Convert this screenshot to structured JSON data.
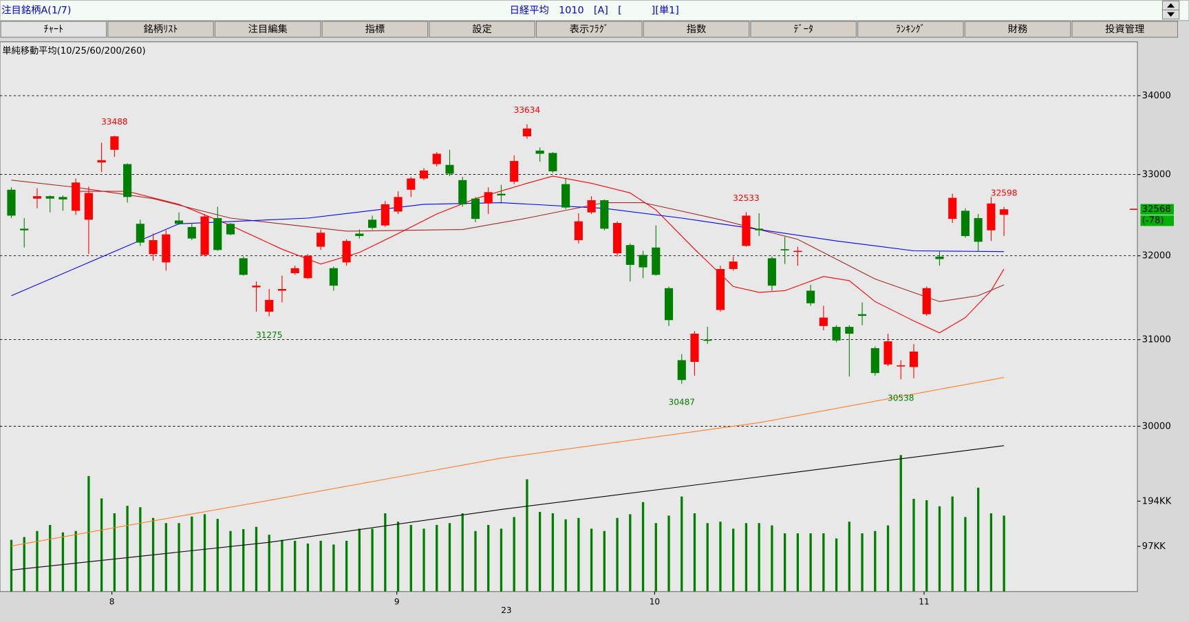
{
  "header": {
    "left": "注目銘柄A(1/7)",
    "center": "日経平均　1010　[A]　[　　　][単1]"
  },
  "tabs": [
    "ﾁｬｰﾄ",
    "銘柄ﾘｽﾄ",
    "注目編集",
    "指標",
    "設定",
    "表示ﾌﾗｸﾞ",
    "指数",
    "ﾃﾞｰﾀ",
    "ﾗﾝｷﾝｸﾞ",
    "財務",
    "投資管理"
  ],
  "chart_data": {
    "type": "candlestick",
    "title": "単純移動平均(10/25/60/200/260)",
    "log_scale": true,
    "grid": true,
    "xlim": [
      -0.88,
      87.35
    ],
    "xticks": [
      {
        "value": 7.8,
        "label": "8"
      },
      {
        "value": 29.9,
        "label": "9"
      },
      {
        "value": 49.9,
        "label": "10"
      },
      {
        "value": 70.8,
        "label": "11"
      }
    ],
    "year_tick": {
      "value": 38.4,
      "label": "23"
    },
    "ylim": [
      28180,
      34700
    ],
    "yticks": [
      30000,
      31000,
      32000,
      33000,
      34000
    ],
    "y2lim": [
      0,
      1180
    ],
    "y2ticks": [
      {
        "value": 97,
        "label": "97KK"
      },
      {
        "value": 194,
        "label": "194KK"
      }
    ],
    "up_color": "#ff0000",
    "down_color": "#008000",
    "open": [
      32810,
      32330,
      32700,
      32730,
      32720,
      32550,
      32440,
      33150,
      33310,
      33130,
      32390,
      32020,
      31920,
      32430,
      32350,
      32010,
      32460,
      32390,
      31970,
      31620,
      31330,
      31580,
      31790,
      31730,
      32110,
      31850,
      31920,
      32270,
      32440,
      32370,
      32540,
      32810,
      32950,
      33130,
      33120,
      32930,
      32700,
      32640,
      32760,
      32910,
      33480,
      33300,
      33270,
      32880,
      32190,
      32530,
      32680,
      32030,
      32130,
      32010,
      32100,
      31610,
      30760,
      30740,
      31000,
      31350,
      31840,
      32120,
      32330,
      31970,
      32080,
      32050,
      31580,
      31160,
      31150,
      31150,
      31300,
      30900,
      30710,
      30690,
      30680,
      31300,
      31990,
      32450,
      32550,
      32460,
      32310,
      32500
    ],
    "high": [
      32840,
      32460,
      32830,
      32740,
      32740,
      32950,
      32850,
      33400,
      33488,
      33140,
      32440,
      32270,
      32310,
      32530,
      32400,
      32510,
      32600,
      32400,
      31990,
      31690,
      31600,
      31760,
      31880,
      32020,
      32320,
      31870,
      32200,
      32320,
      32490,
      32670,
      32790,
      32970,
      33080,
      33280,
      33310,
      32970,
      32720,
      32840,
      32870,
      33240,
      33634,
      33340,
      33280,
      32950,
      32520,
      32730,
      32690,
      32420,
      32150,
      32060,
      32370,
      31630,
      30830,
      31100,
      31150,
      31880,
      31990,
      32533,
      32520,
      31990,
      32230,
      32110,
      31650,
      31400,
      31170,
      31170,
      31440,
      30920,
      31070,
      30760,
      30950,
      31630,
      32050,
      32760,
      32580,
      32510,
      32720,
      32598
    ],
    "low": [
      32460,
      32100,
      32580,
      32530,
      32550,
      32500,
      32020,
      33030,
      33220,
      32650,
      32120,
      31940,
      31820,
      32380,
      32190,
      31990,
      32060,
      32250,
      31760,
      31330,
      31275,
      31440,
      31770,
      31720,
      32070,
      31580,
      31880,
      32210,
      32320,
      32350,
      32510,
      32720,
      32930,
      33100,
      32980,
      32600,
      32410,
      32510,
      32640,
      32880,
      33450,
      33160,
      33020,
      32570,
      32150,
      32510,
      32310,
      31990,
      31690,
      31730,
      31760,
      31160,
      30487,
      30580,
      30950,
      31330,
      31820,
      32110,
      32240,
      31580,
      31900,
      31880,
      31400,
      31110,
      30970,
      30570,
      31170,
      30580,
      30690,
      30538,
      30550,
      31280,
      31880,
      32400,
      32220,
      32050,
      32180,
      32240
    ],
    "close": [
      32490,
      32310,
      32730,
      32700,
      32690,
      32900,
      32770,
      33180,
      33480,
      32720,
      32160,
      32190,
      32260,
      32390,
      32210,
      32480,
      32070,
      32260,
      31770,
      31640,
      31470,
      31600,
      31850,
      32000,
      32280,
      31640,
      32180,
      32240,
      32340,
      32630,
      32720,
      32950,
      33050,
      33260,
      33010,
      32630,
      32450,
      32780,
      32740,
      33170,
      33580,
      33260,
      33040,
      32590,
      32420,
      32680,
      32330,
      32400,
      31890,
      31860,
      31770,
      31230,
      30530,
      31070,
      30990,
      31840,
      31930,
      32490,
      32310,
      31640,
      32070,
      32060,
      31430,
      31260,
      30990,
      31070,
      31280,
      30610,
      30980,
      30700,
      30860,
      31610,
      31960,
      32710,
      32240,
      32170,
      32640,
      32568
    ],
    "high_labels": [
      8,
      40,
      57,
      77
    ],
    "low_labels": [
      20,
      52,
      69
    ],
    "change": {
      "value": -78,
      "label": "(-78)"
    },
    "volume": {
      "color": "#008000",
      "values": [
        111,
        117,
        130,
        143,
        127,
        130,
        248,
        200,
        168,
        184,
        181,
        158,
        147,
        147,
        161,
        166,
        156,
        130,
        134,
        139,
        122,
        111,
        109,
        103,
        109,
        101,
        109,
        135,
        135,
        168,
        150,
        143,
        135,
        143,
        147,
        168,
        130,
        143,
        135,
        160,
        241,
        171,
        168,
        155,
        158,
        135,
        130,
        158,
        166,
        192,
        147,
        163,
        204,
        168,
        147,
        150,
        135,
        147,
        147,
        142,
        125,
        125,
        125,
        125,
        114,
        150,
        125,
        130,
        142,
        293,
        199,
        196,
        183,
        204,
        160,
        223,
        168,
        163
      ]
    },
    "moving_averages": [
      {
        "color": "#ff0000",
        "x": [
          5,
          9,
          13,
          17,
          21,
          24,
          27,
          30,
          33,
          36,
          40,
          42,
          45,
          48,
          50,
          53,
          56,
          58,
          60,
          63,
          65,
          67,
          70,
          72,
          74,
          76,
          77
        ],
        "values": [
          32790,
          32790,
          32630,
          32370,
          32080,
          31900,
          32040,
          32270,
          32510,
          32700,
          32890,
          32980,
          32890,
          32770,
          32560,
          32080,
          31630,
          31560,
          31580,
          31750,
          31700,
          31450,
          31220,
          31080,
          31260,
          31580,
          31840
        ]
      },
      {
        "color": "#a02828",
        "x": [
          0,
          5,
          11,
          17,
          26,
          35,
          40,
          46,
          49,
          55,
          61,
          67,
          72,
          75,
          77
        ],
        "values": [
          32930,
          32840,
          32700,
          32460,
          32300,
          32320,
          32460,
          32650,
          32650,
          32440,
          32200,
          31720,
          31450,
          31520,
          31650
        ]
      },
      {
        "color": "#0000ff",
        "x": [
          0,
          13,
          23,
          32,
          38,
          46,
          52,
          58,
          64,
          70,
          77
        ],
        "values": [
          31520,
          32390,
          32460,
          32630,
          32650,
          32580,
          32460,
          32320,
          32180,
          32060,
          32050
        ]
      },
      {
        "color": "#ff7f27",
        "x": [
          0,
          20,
          38,
          58,
          77
        ],
        "values": [
          28670,
          29170,
          29640,
          30040,
          30560
        ]
      },
      {
        "color": "#000000",
        "x": [
          0,
          20,
          38,
          58,
          77
        ],
        "values": [
          28410,
          28710,
          29070,
          29430,
          29780
        ]
      }
    ]
  }
}
